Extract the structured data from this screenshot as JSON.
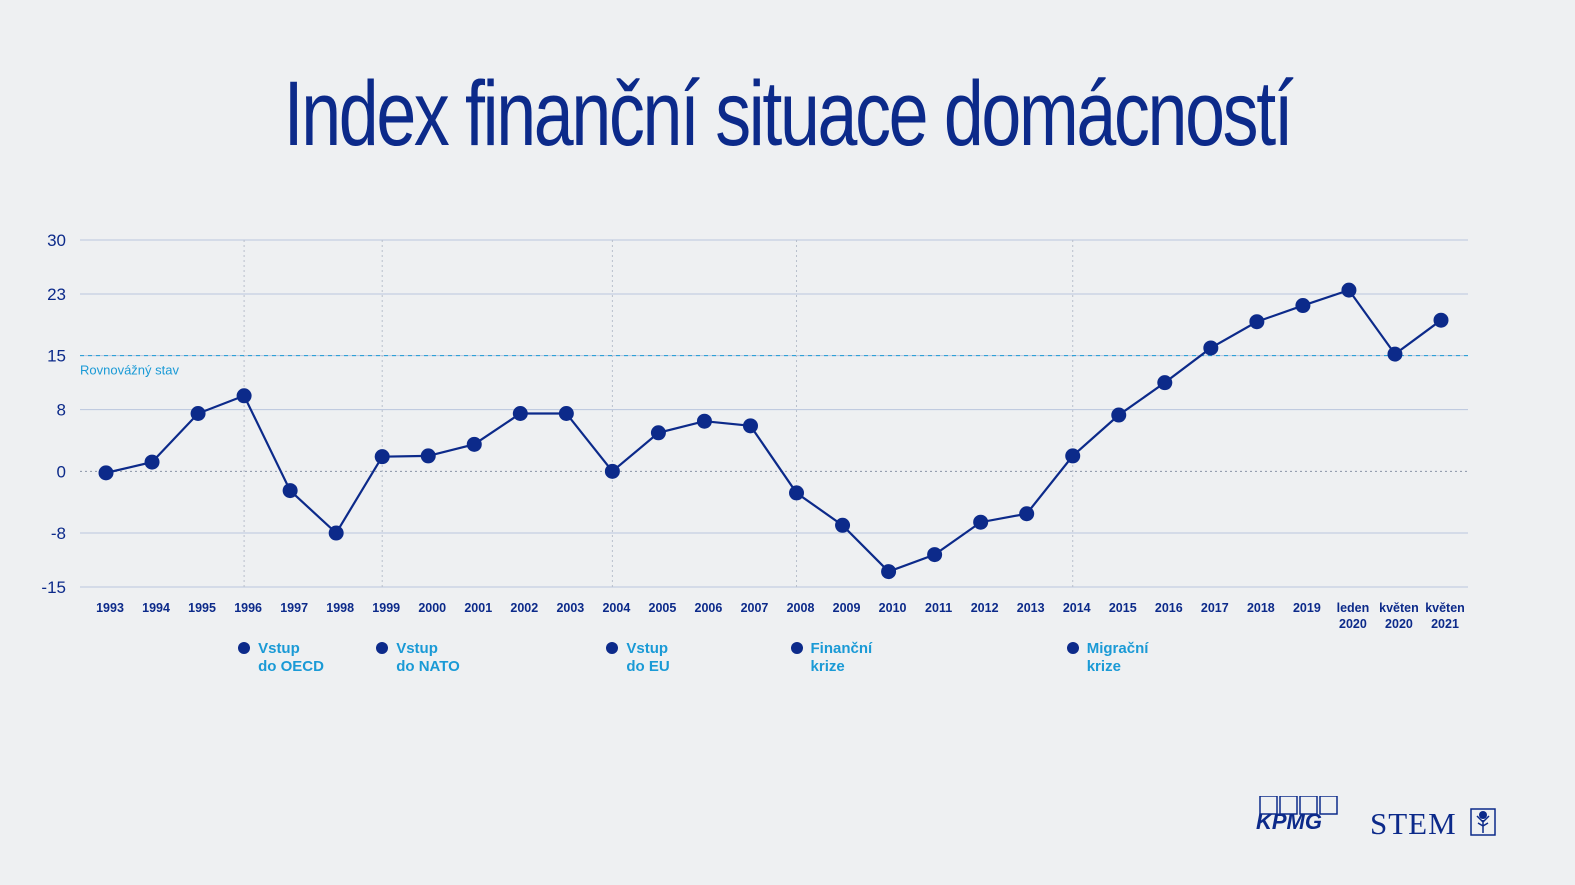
{
  "title": "Index finanční situace domácností",
  "equilibrium_label": "Rovnovážný stav",
  "colors": {
    "line": "#0c2a8a",
    "accent": "#1a9ad6",
    "grid": "#b9c6de",
    "background": "#eef0f2"
  },
  "events": [
    {
      "line1": "Vstup",
      "line2": "do OECD",
      "at": "1996"
    },
    {
      "line1": "Vstup",
      "line2": "do NATO",
      "at": "1999"
    },
    {
      "line1": "Vstup",
      "line2": "do EU",
      "at": "2004"
    },
    {
      "line1": "Finanční",
      "line2": "krize",
      "at": "2008"
    },
    {
      "line1": "Migrační",
      "line2": "krize",
      "at": "2014"
    }
  ],
  "logos": {
    "kpmg": "KPMG",
    "stem": "STEM"
  },
  "chart_data": {
    "type": "line",
    "title": "Index finanční situace domácností",
    "categories": [
      "1993",
      "1994",
      "1995",
      "1996",
      "1997",
      "1998",
      "1999",
      "2000",
      "2001",
      "2002",
      "2003",
      "2004",
      "2005",
      "2006",
      "2007",
      "2008",
      "2009",
      "2010",
      "2011",
      "2012",
      "2013",
      "2014",
      "2015",
      "2016",
      "2017",
      "2018",
      "2019",
      "leden 2020",
      "květen 2020",
      "květen 2021"
    ],
    "values": [
      -0.2,
      1.2,
      7.5,
      9.8,
      -2.5,
      -8.0,
      1.9,
      2.0,
      3.5,
      7.5,
      7.5,
      0,
      5.0,
      6.5,
      5.9,
      -2.8,
      -7.0,
      -13.0,
      -10.8,
      -6.6,
      -5.5,
      2.0,
      7.3,
      11.5,
      16.0,
      19.4,
      21.5,
      23.5,
      15.2,
      19.6
    ],
    "yticks": [
      30,
      23,
      15,
      8,
      0,
      -8,
      -15
    ],
    "ylim": [
      -15,
      30
    ],
    "reference_line": 15,
    "grid": true
  }
}
